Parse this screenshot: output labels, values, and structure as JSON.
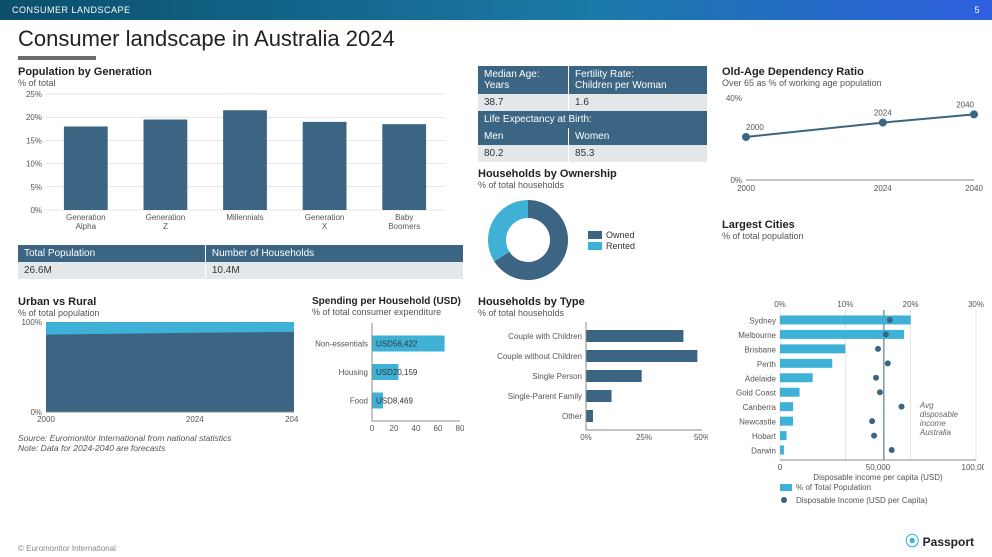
{
  "header": {
    "label": "CONSUMER LANDSCAPE",
    "page_number": "5"
  },
  "title": "Consumer landscape in Australia 2024",
  "colors": {
    "primary": "#3b6582",
    "accent": "#3fb1d6",
    "header_bg_from": "#0b4f6c",
    "header_bg_to": "#2f5fe0",
    "grid": "#cccccc",
    "text": "#333333",
    "table_header_bg": "#3b6582",
    "table_header_fg": "#ffffff",
    "table_cell_bg": "#e4e8eb"
  },
  "pop_by_gen": {
    "title": "Population by Generation",
    "subtitle": "% of total",
    "type": "bar",
    "categories": [
      "Generation Alpha",
      "Generation Z",
      "Millennials",
      "Generation X",
      "Baby Boomers"
    ],
    "values": [
      18,
      19.5,
      21.5,
      19,
      18.5
    ],
    "ylim": [
      0,
      25
    ],
    "ytick_step": 5,
    "bar_color": "#3b6582",
    "bar_width": 0.55,
    "background_color": "#ffffff"
  },
  "totals_table": {
    "headers": [
      "Total Population",
      "Number of Households"
    ],
    "values": [
      "26.6M",
      "10.4M"
    ]
  },
  "urban_rural": {
    "title": "Urban vs Rural",
    "subtitle": "% of total population",
    "type": "stacked_area",
    "x": [
      2000,
      2024,
      2040
    ],
    "urban": [
      86,
      88,
      89
    ],
    "rural_fill": "#3fb1d6",
    "urban_fill": "#3b6582",
    "ylim": [
      0,
      100
    ],
    "yticks": [
      0,
      100
    ],
    "xticks": [
      2000,
      2024,
      2040
    ]
  },
  "spending": {
    "title": "Spending per Household (USD)",
    "subtitle": "% of total consumer expenditure",
    "type": "hbar_with_labels",
    "categories": [
      "Non-essentials",
      "Housing",
      "Food"
    ],
    "values": [
      66,
      24,
      10
    ],
    "value_labels": [
      "USD56,422",
      "USD20,159",
      "USD8,469"
    ],
    "bar_color": "#3fb1d6",
    "xlim": [
      0,
      80
    ],
    "xtick_step": 20
  },
  "demo_table": {
    "rows": [
      {
        "labels": [
          "Median Age:",
          "Fertility Rate:"
        ],
        "sublabels": [
          "Years",
          "Children per Woman"
        ],
        "values": [
          "38.7",
          "1.6"
        ]
      },
      {
        "span_label": "Life Expectancy at Birth:",
        "labels": [
          "Men",
          "Women"
        ],
        "values": [
          "80.2",
          "85.3"
        ]
      }
    ]
  },
  "households_ownership": {
    "title": "Households by Ownership",
    "subtitle": "% of total households",
    "type": "donut",
    "slices": [
      {
        "label": "Owned",
        "value": 66,
        "color": "#3b6582"
      },
      {
        "label": "Rented",
        "value": 34,
        "color": "#3fb1d6"
      }
    ],
    "inner_radius_ratio": 0.55
  },
  "households_type": {
    "title": "Households by Type",
    "subtitle": "% of total households",
    "type": "hbar",
    "categories": [
      "Couple with Children",
      "Couple without Children",
      "Single Person",
      "Single-Parent Family",
      "Other"
    ],
    "values": [
      42,
      48,
      24,
      11,
      3
    ],
    "bar_color": "#3b6582",
    "xlim": [
      0,
      50
    ],
    "xticks": [
      0,
      25,
      50
    ]
  },
  "old_age": {
    "title": "Old-Age Dependency Ratio",
    "subtitle": "Over 65 as % of working age population",
    "type": "line",
    "x": [
      2000,
      2024,
      2040
    ],
    "y": [
      21,
      28,
      32
    ],
    "point_labels": [
      "2000",
      "2024",
      "2040"
    ],
    "ylim": [
      0,
      40
    ],
    "yticks": [
      0,
      40
    ],
    "xticks": [
      2000,
      2024,
      2040
    ],
    "line_color": "#3b6582",
    "marker_color": "#3b6582",
    "marker_size": 4
  },
  "largest_cities": {
    "title": "Largest Cities",
    "subtitle": "% of total population",
    "type": "hbar_with_secondary_scatter",
    "categories": [
      "Sydney",
      "Melbourne",
      "Brisbane",
      "Perth",
      "Adelaide",
      "Gold Coast",
      "Canberra",
      "Newcastle",
      "Hobart",
      "Darwin"
    ],
    "pct_values": [
      20,
      19,
      10,
      8,
      5,
      3,
      2,
      2,
      1,
      0.6
    ],
    "income_values": [
      56000,
      54000,
      50000,
      55000,
      49000,
      51000,
      62000,
      47000,
      48000,
      57000
    ],
    "avg_income": 53000,
    "bar_color": "#3fb1d6",
    "dot_color": "#3b6582",
    "pct_xlim": [
      0,
      30
    ],
    "pct_xticks": [
      0,
      10,
      20,
      30
    ],
    "income_xlim": [
      0,
      100000
    ],
    "income_xticks": [
      0,
      50000,
      100000
    ],
    "bottom_label": "Disposable income per capita (USD)",
    "legend": [
      "% of Total Population",
      "Disposable Income (USD per Capita)"
    ],
    "annotation": "Avg disposable income Australia"
  },
  "source_note": {
    "source": "Source: Euromonitor International from national statistics",
    "note": "Note: Data for 2024-2040 are forecasts"
  },
  "copyright": "© Euromonitor International",
  "brand": "Passport"
}
